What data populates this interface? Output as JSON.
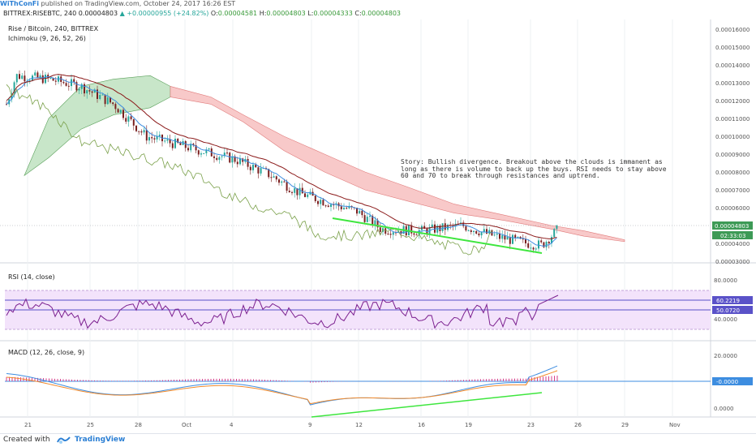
{
  "header": {
    "author": "WiThConFi",
    "published_text": "published on TradingView.com, October 24, 2017 16:26 EST"
  },
  "symbol_bar": {
    "symbol": "BITTREX:RISEBTC, 240",
    "last": "0.00004803",
    "change": "+0.00000955 (+24.82%)",
    "open_label": "O:",
    "open": "0.00004581",
    "high_label": "H:",
    "high": "0.00004803",
    "low_label": "L:",
    "low": "0.00004333",
    "close_label": "C:",
    "close": "0.00004803"
  },
  "main_pane": {
    "title": "Rise / Bitcoin, 240, BITTREX",
    "indicator": "Ichimoku (9, 26, 52, 26)",
    "y_ticks": [
      "0.00016000",
      "0.00015000",
      "0.00014000",
      "0.00013000",
      "0.00012000",
      "0.00011000",
      "0.00010000",
      "0.00009000",
      "0.00008000",
      "0.00007000",
      "0.00006000",
      "0.00005000",
      "0.00004000",
      "0.00003000"
    ],
    "last_price_tag": "0.00004803",
    "countdown_tag": "02:33:03",
    "annotation": "Story: Bullish divergence. Breakout above the clouds is immanent as long as there is volume to back up the buys. RSI needs to stay above 60 and 70 to break through resistances and uptrend."
  },
  "rsi_pane": {
    "title": "RSI (14, close)",
    "y_ticks": [
      "80.0000",
      "40.0000"
    ],
    "value_tag_1": "60.2219",
    "value_tag_2": "50.0720"
  },
  "macd_pane": {
    "title": "MACD (12, 26, close, 9)",
    "y_ticks": [
      "20.0000",
      "0.0000"
    ],
    "value_tag": "-0.0000"
  },
  "x_axis": {
    "labels": [
      "21",
      "25",
      "28",
      "Oct",
      "4",
      "9",
      "12",
      "16",
      "19",
      "23",
      "26",
      "29",
      "Nov"
    ]
  },
  "footer": {
    "created_with": "Created with",
    "brand": "TradingView"
  },
  "colors": {
    "candle_up": "#26a69a",
    "candle_down": "#7a1f1f",
    "cloud_bull": "#c8e6c9",
    "cloud_bear": "#f8c9c9",
    "tenkan": "#3d8de0",
    "kijun": "#8b1a1a",
    "chikou": "#7ba14b",
    "divergence": "#3ee63e",
    "rsi": "#7b1f8f",
    "rsi_band": "#f3e3fb",
    "macd_line": "#3d8de0",
    "signal_line": "#f28a2b",
    "histogram": "#d63c8a"
  }
}
